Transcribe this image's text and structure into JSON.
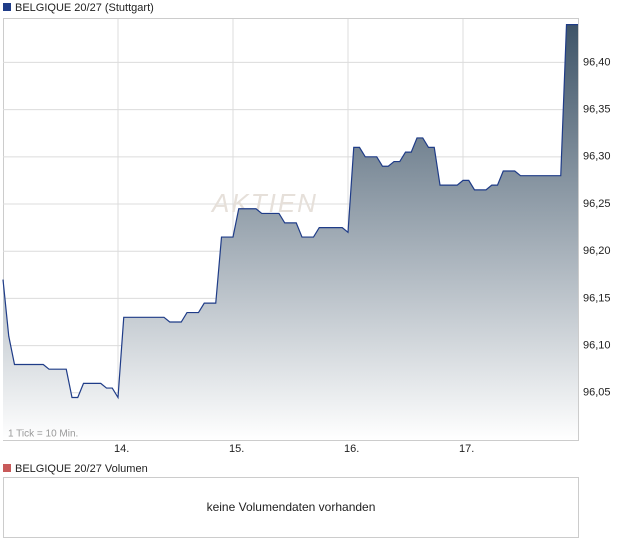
{
  "chart_data": {
    "type": "line",
    "title": "BELGIQUE 20/27 (Stuttgart)",
    "note": "1 Tick = 10 Min.",
    "watermark": "AKTIEN",
    "color": "#1f3c88",
    "values": [
      96.17,
      96.11,
      96.08,
      96.08,
      96.08,
      96.08,
      96.08,
      96.08,
      96.075,
      96.075,
      96.075,
      96.075,
      96.045,
      96.045,
      96.06,
      96.06,
      96.06,
      96.06,
      96.055,
      96.055,
      96.045,
      96.13,
      96.13,
      96.13,
      96.13,
      96.13,
      96.13,
      96.13,
      96.13,
      96.125,
      96.125,
      96.125,
      96.135,
      96.135,
      96.135,
      96.145,
      96.145,
      96.145,
      96.215,
      96.215,
      96.215,
      96.245,
      96.245,
      96.245,
      96.245,
      96.24,
      96.24,
      96.24,
      96.24,
      96.23,
      96.23,
      96.23,
      96.215,
      96.215,
      96.215,
      96.225,
      96.225,
      96.225,
      96.225,
      96.225,
      96.22,
      96.31,
      96.31,
      96.3,
      96.3,
      96.3,
      96.29,
      96.29,
      96.295,
      96.295,
      96.305,
      96.305,
      96.32,
      96.32,
      96.31,
      96.31,
      96.27,
      96.27,
      96.27,
      96.27,
      96.275,
      96.275,
      96.265,
      96.265,
      96.265,
      96.27,
      96.27,
      96.285,
      96.285,
      96.285,
      96.28,
      96.28,
      96.28,
      96.28,
      96.28,
      96.28,
      96.28,
      96.28,
      96.44,
      96.44
    ],
    "xticks": [
      {
        "value": 20,
        "label": "14."
      },
      {
        "value": 40,
        "label": "15."
      },
      {
        "value": 60,
        "label": "16."
      },
      {
        "value": 80,
        "label": "17."
      }
    ],
    "ylim": [
      96.0,
      96.446
    ],
    "yticks": [
      {
        "value": 96.05,
        "label": "96,05"
      },
      {
        "value": 96.1,
        "label": "96,10"
      },
      {
        "value": 96.15,
        "label": "96,15"
      },
      {
        "value": 96.2,
        "label": "96,20"
      },
      {
        "value": 96.25,
        "label": "96,25"
      },
      {
        "value": 96.3,
        "label": "96,30"
      },
      {
        "value": 96.35,
        "label": "96,35"
      },
      {
        "value": 96.4,
        "label": "96,40"
      }
    ],
    "grid": true,
    "volume": {
      "title": "BELGIQUE 20/27 Volumen",
      "message": "keine Volumendaten vorhanden",
      "color": "#c85a5a"
    }
  }
}
